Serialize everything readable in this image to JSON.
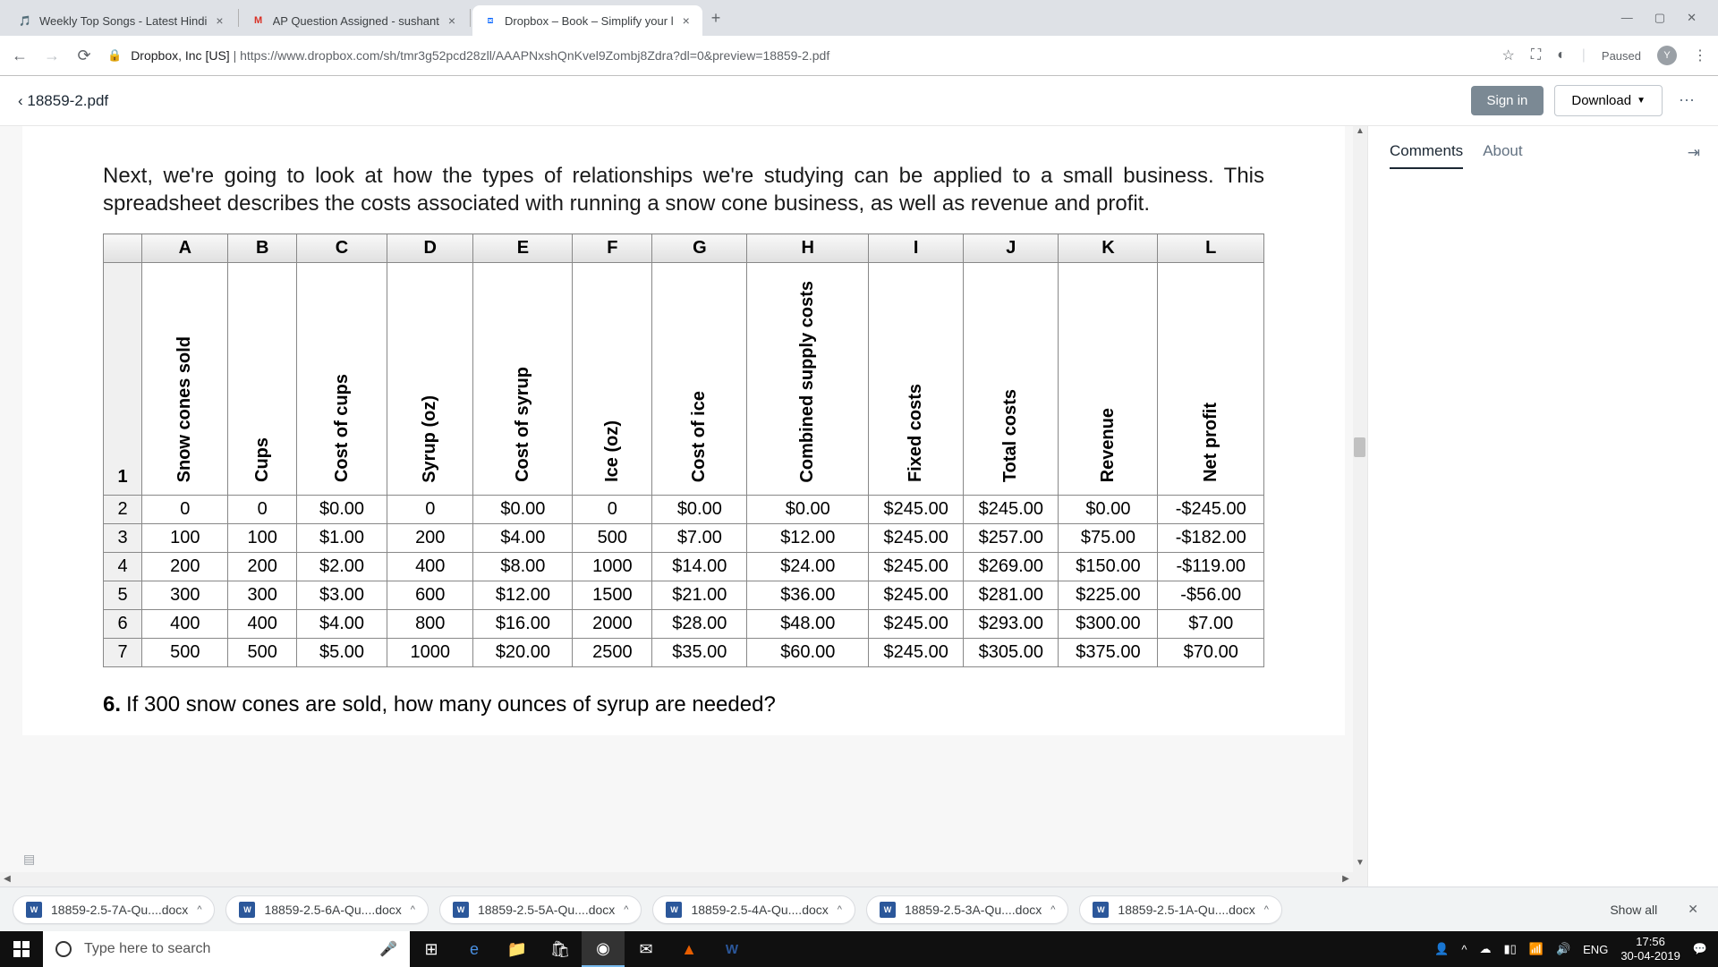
{
  "browser": {
    "tabs": [
      {
        "title": "Weekly Top Songs - Latest Hindi",
        "favicon": "🎵"
      },
      {
        "title": "AP Question Assigned - sushant",
        "favicon": "M"
      },
      {
        "title": "Dropbox – Book – Simplify your l",
        "favicon": "⧈"
      }
    ],
    "url_host": "Dropbox, Inc [US]",
    "url_sep": " | ",
    "url_full": "https://www.dropbox.com/sh/tmr3g52pcd28zll/AAAPNxshQnKvel9Zombj8Zdra?dl=0&preview=18859-2.pdf",
    "paused": "Paused",
    "avatar": "Y"
  },
  "dropbox": {
    "back_label": "‹  18859-2.pdf",
    "sign_in": "Sign in",
    "download": "Download",
    "panel_tabs": {
      "comments": "Comments",
      "about": "About"
    }
  },
  "document": {
    "intro": "Next, we're going to look at how the types of relationships we're studying can be applied to a small business. This spreadsheet describes the costs associated with running a snow cone business, as well as revenue and profit.",
    "table": {
      "col_letters": [
        "A",
        "B",
        "C",
        "D",
        "E",
        "F",
        "G",
        "H",
        "I",
        "J",
        "K",
        "L"
      ],
      "col_widths_pct": [
        7.8,
        6.2,
        8.2,
        7.8,
        9.0,
        7.2,
        8.6,
        11.0,
        8.6,
        8.6,
        9.0,
        9.6
      ],
      "headers": [
        "Snow cones sold",
        "Cups",
        "Cost of cups",
        "Syrup (oz)",
        "Cost of syrup",
        "Ice (oz)",
        "Cost of ice",
        "Combined supply costs",
        "Fixed costs",
        "Total costs",
        "Revenue",
        "Net profit"
      ],
      "row_numbers": [
        "1",
        "2",
        "3",
        "4",
        "5",
        "6",
        "7"
      ],
      "rows": [
        [
          "0",
          "0",
          "$0.00",
          "0",
          "$0.00",
          "0",
          "$0.00",
          "$0.00",
          "$245.00",
          "$245.00",
          "$0.00",
          "-$245.00"
        ],
        [
          "100",
          "100",
          "$1.00",
          "200",
          "$4.00",
          "500",
          "$7.00",
          "$12.00",
          "$245.00",
          "$257.00",
          "$75.00",
          "-$182.00"
        ],
        [
          "200",
          "200",
          "$2.00",
          "400",
          "$8.00",
          "1000",
          "$14.00",
          "$24.00",
          "$245.00",
          "$269.00",
          "$150.00",
          "-$119.00"
        ],
        [
          "300",
          "300",
          "$3.00",
          "600",
          "$12.00",
          "1500",
          "$21.00",
          "$36.00",
          "$245.00",
          "$281.00",
          "$225.00",
          "-$56.00"
        ],
        [
          "400",
          "400",
          "$4.00",
          "800",
          "$16.00",
          "2000",
          "$28.00",
          "$48.00",
          "$245.00",
          "$293.00",
          "$300.00",
          "$7.00"
        ],
        [
          "500",
          "500",
          "$5.00",
          "1000",
          "$20.00",
          "2500",
          "$35.00",
          "$60.00",
          "$245.00",
          "$305.00",
          "$375.00",
          "$70.00"
        ]
      ]
    },
    "question_num": "6.",
    "question_text": "If 300 snow cones are sold, how many ounces of syrup are needed?"
  },
  "downloads": [
    "18859-2.5-7A-Qu....docx",
    "18859-2.5-6A-Qu....docx",
    "18859-2.5-5A-Qu....docx",
    "18859-2.5-4A-Qu....docx",
    "18859-2.5-3A-Qu....docx",
    "18859-2.5-1A-Qu....docx"
  ],
  "downloads_show_all": "Show all",
  "taskbar": {
    "search_placeholder": "Type here to search",
    "lang": "ENG",
    "time": "17:56",
    "date": "30-04-2019"
  }
}
